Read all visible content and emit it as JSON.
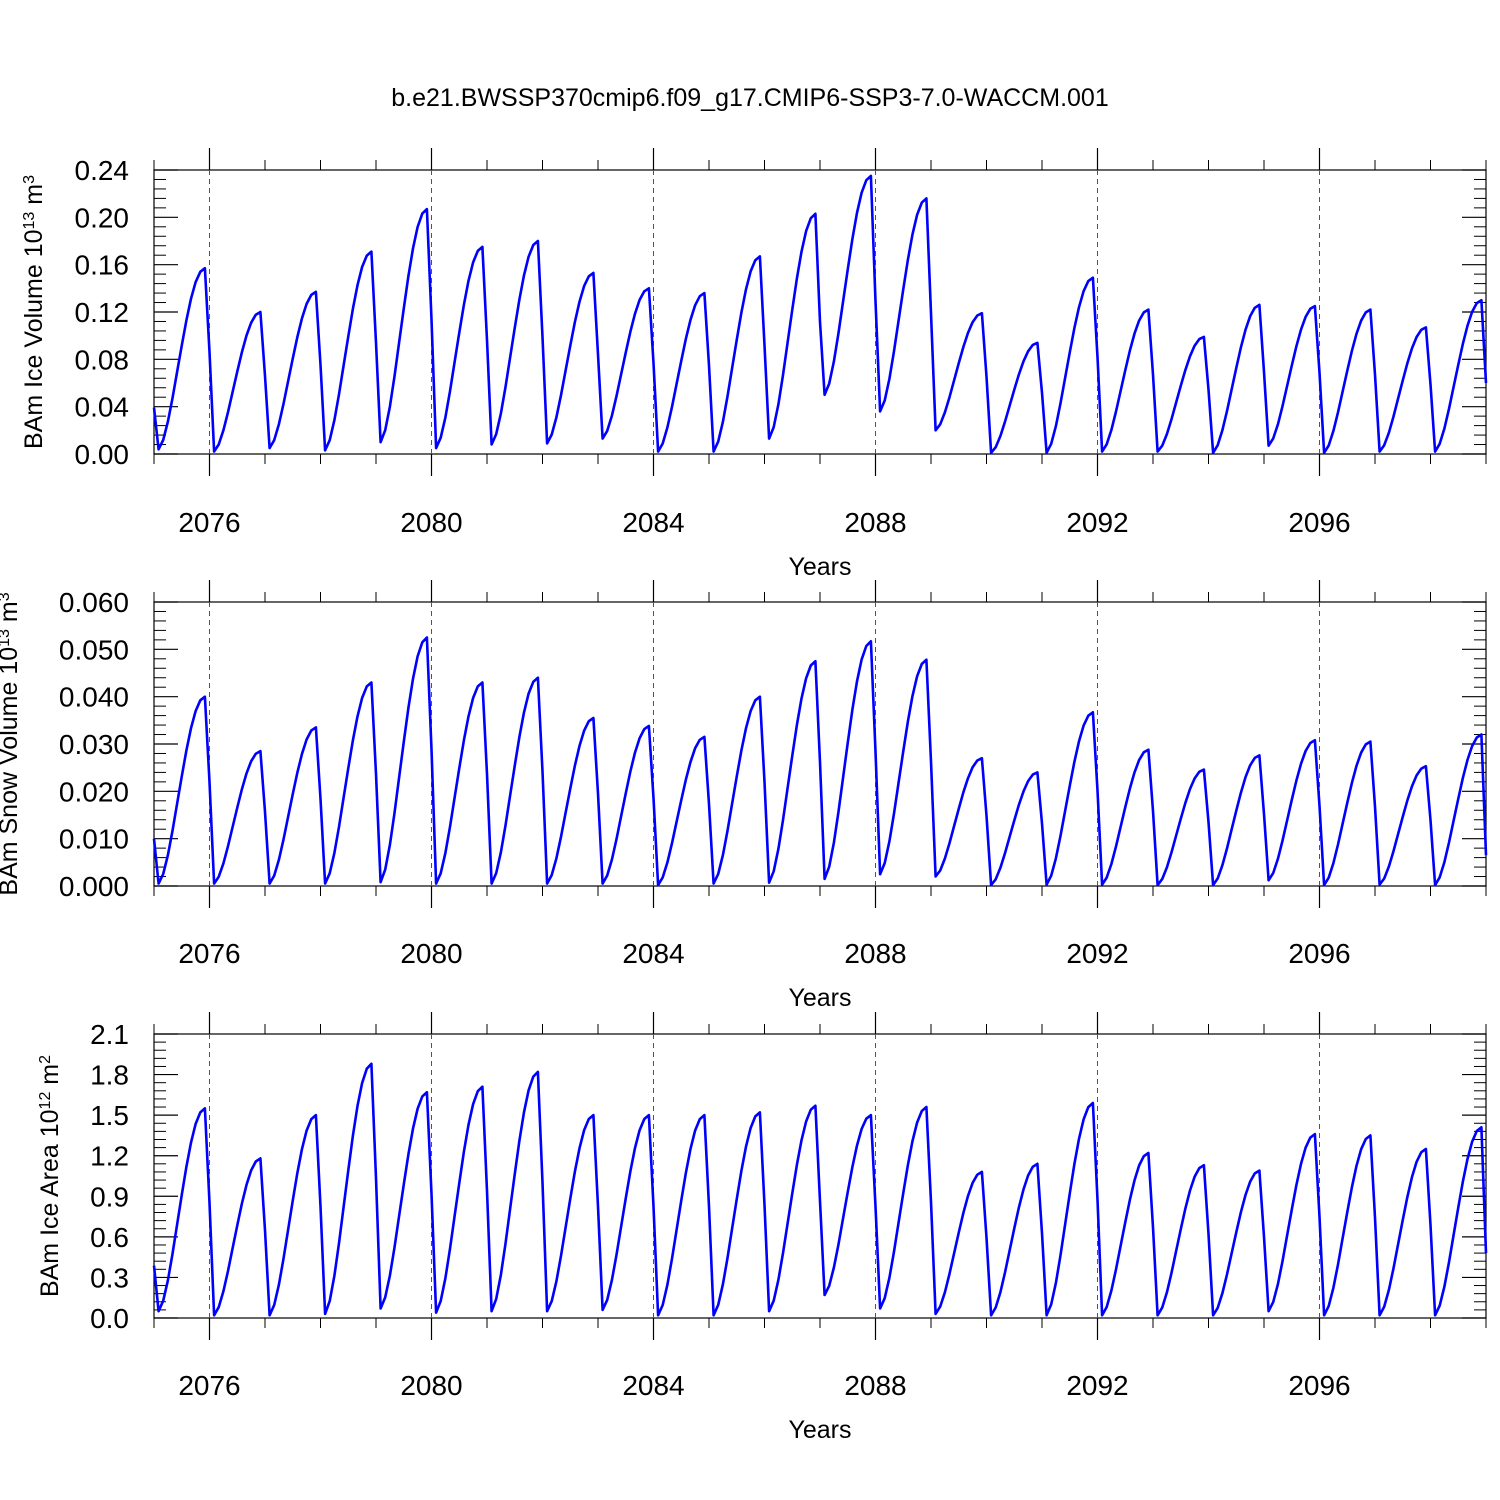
{
  "title": "b.e21.BWSSP370cmip6.f09_g17.CMIP6-SSP3-7.0-WACCM.001",
  "colors": {
    "line": "#0000ff",
    "axes": "#000000",
    "grid": "#555555"
  },
  "chart_data": [
    {
      "type": "line",
      "title": "b.e21.BWSSP370cmip6.f09_g17.CMIP6-SSP3-7.0-WACCM.001",
      "ylabel_main": "BAm Ice Volume 10",
      "ylabel_exp": "13",
      "ylabel_unit": " m",
      "ylabel_unit_exp": "3",
      "xlabel": "Years",
      "xlim": [
        2075.0,
        2099.0
      ],
      "ylim": [
        0.0,
        0.24
      ],
      "yticks": [
        "0.00",
        "0.04",
        "0.08",
        "0.12",
        "0.16",
        "0.20",
        "0.24"
      ],
      "xticks": [
        "2076",
        "2080",
        "2084",
        "2088",
        "2092",
        "2096"
      ],
      "grid": "vertical dashed at every 4 years",
      "series": [
        {
          "name": "BAm Ice Volume",
          "peaks": [
            0.157,
            0.12,
            0.137,
            0.171,
            0.207,
            0.175,
            0.18,
            0.153,
            0.14,
            0.136,
            0.167,
            0.203,
            0.235,
            0.216,
            0.119,
            0.094,
            0.149,
            0.122,
            0.099,
            0.126,
            0.125,
            0.122,
            0.107,
            0.13
          ],
          "troughs": [
            0.004,
            0.002,
            0.005,
            0.003,
            0.01,
            0.005,
            0.008,
            0.009,
            0.013,
            0.002,
            0.002,
            0.013,
            0.05,
            0.036,
            0.02,
            0.001,
            0.001,
            0.002,
            0.002,
            0.001,
            0.007,
            0.001,
            0.002,
            0.002
          ],
          "end_value": 0.06
        }
      ]
    },
    {
      "type": "line",
      "ylabel_main": "BAm Snow Volume 10",
      "ylabel_exp": "13",
      "ylabel_unit": " m",
      "ylabel_unit_exp": "3",
      "xlabel": "Years",
      "xlim": [
        2075.0,
        2099.0
      ],
      "ylim": [
        0.0,
        0.06
      ],
      "yticks": [
        "0.000",
        "0.010",
        "0.020",
        "0.030",
        "0.040",
        "0.050",
        "0.060"
      ],
      "xticks": [
        "2076",
        "2080",
        "2084",
        "2088",
        "2092",
        "2096"
      ],
      "grid": "vertical dashed at every 4 years",
      "series": [
        {
          "name": "BAm Snow Volume",
          "peaks": [
            0.04,
            0.0285,
            0.0335,
            0.043,
            0.0525,
            0.043,
            0.044,
            0.0355,
            0.0338,
            0.0315,
            0.04,
            0.0475,
            0.0517,
            0.0478,
            0.027,
            0.024,
            0.0367,
            0.0288,
            0.0246,
            0.0276,
            0.0308,
            0.0305,
            0.0253,
            0.032
          ],
          "troughs": [
            0.0005,
            0.0005,
            0.0005,
            0.0005,
            0.0008,
            0.0005,
            0.0005,
            0.0005,
            0.0005,
            0.0002,
            0.0005,
            0.0007,
            0.0015,
            0.0025,
            0.002,
            0.0002,
            0.0003,
            0.0003,
            0.0002,
            0.0002,
            0.0012,
            0.0002,
            0.0003,
            0.0002
          ],
          "end_value": 0.0065
        }
      ]
    },
    {
      "type": "line",
      "ylabel_main": "BAm Ice Area 10",
      "ylabel_exp": "12",
      "ylabel_unit": " m",
      "ylabel_unit_exp": "2",
      "xlabel": "Years",
      "xlim": [
        2075.0,
        2099.0
      ],
      "ylim": [
        0.0,
        2.1
      ],
      "yticks": [
        "0.0",
        "0.3",
        "0.6",
        "0.9",
        "1.2",
        "1.5",
        "1.8",
        "2.1"
      ],
      "xticks": [
        "2076",
        "2080",
        "2084",
        "2088",
        "2092",
        "2096"
      ],
      "grid": "vertical dashed at every 4 years",
      "series": [
        {
          "name": "BAm Ice Area",
          "peaks": [
            1.55,
            1.18,
            1.5,
            1.88,
            1.67,
            1.71,
            1.82,
            1.5,
            1.5,
            1.5,
            1.52,
            1.57,
            1.5,
            1.56,
            1.08,
            1.14,
            1.59,
            1.22,
            1.13,
            1.09,
            1.36,
            1.35,
            1.25,
            1.41
          ],
          "troughs": [
            0.05,
            0.02,
            0.02,
            0.03,
            0.07,
            0.04,
            0.05,
            0.05,
            0.06,
            0.02,
            0.02,
            0.05,
            0.17,
            0.07,
            0.03,
            0.02,
            0.02,
            0.02,
            0.02,
            0.02,
            0.05,
            0.02,
            0.02,
            0.02
          ],
          "end_value": 0.48
        }
      ]
    }
  ]
}
